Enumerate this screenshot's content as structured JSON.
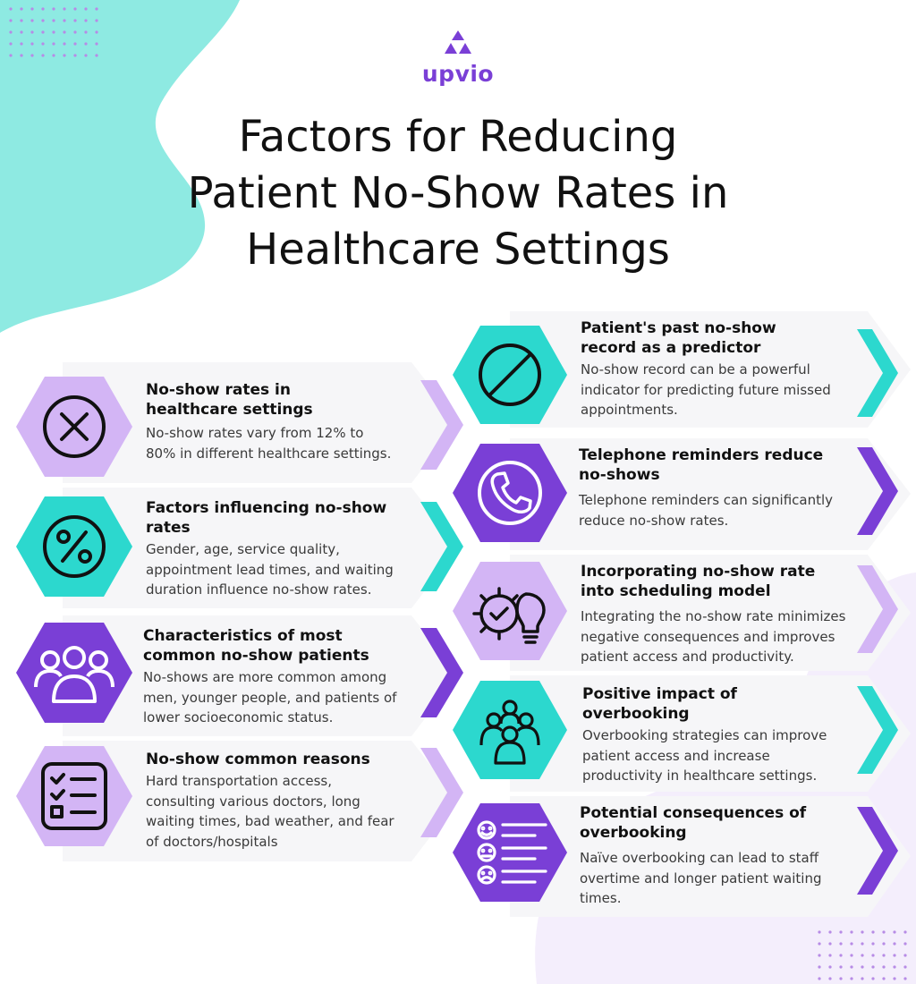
{
  "brand": {
    "name": "upvio",
    "logo_icon": "triangle-logo-icon",
    "color": "#7a3fd6"
  },
  "title_lines": [
    "Factors for Reducing",
    "Patient No-Show Rates in",
    "Healthcare Settings"
  ],
  "colors": {
    "teal": "#2cd8ce",
    "purple": "#7a3fd6",
    "lavender": "#d3b5f5",
    "panel": "#f6f6f8",
    "blob": "#8eeae2"
  },
  "left_cards": [
    {
      "heading": "No-show rates in healthcare settings",
      "heading_lines": [
        "No-show rates in",
        "healthcare settings"
      ],
      "body_lines": [
        "No-show rates vary from 12% to",
        "80% in different healthcare settings."
      ],
      "icon": "x-circle-icon",
      "hex_color": "lavender",
      "chevron_color": "lavender"
    },
    {
      "heading": "Factors influencing no-show rates",
      "heading_lines": [
        "Factors influencing no-show",
        "rates"
      ],
      "body_lines": [
        "Gender, age, service quality,",
        "appointment lead times, and waiting",
        "duration influence no-show rates."
      ],
      "icon": "percent-icon",
      "hex_color": "teal",
      "chevron_color": "teal"
    },
    {
      "heading": "Characteristics of most common no-show patients",
      "heading_lines": [
        "Characteristics of most",
        "common no-show patients"
      ],
      "body_lines": [
        "No-shows are more common among",
        "men, younger people, and patients of",
        "lower socioeconomic status."
      ],
      "icon": "people-group-icon",
      "hex_color": "purple",
      "chevron_color": "purple"
    },
    {
      "heading": "No-show common reasons",
      "heading_lines": [
        "No-show common reasons"
      ],
      "body_lines": [
        "Hard transportation access,",
        "consulting various doctors, long",
        "waiting times, bad weather, and fear",
        "of doctors/hospitals"
      ],
      "icon": "checklist-icon",
      "hex_color": "lavender",
      "chevron_color": "lavender"
    }
  ],
  "right_cards": [
    {
      "heading": "Patient's past no-show record as a predictor",
      "heading_lines": [
        "Patient's past no-show",
        "record as a predictor"
      ],
      "body_lines": [
        "No-show record can be a powerful",
        "indicator for predicting future missed",
        "appointments."
      ],
      "icon": "prohibited-icon",
      "hex_color": "teal",
      "chevron_color": "teal"
    },
    {
      "heading": "Telephone reminders reduce no-shows",
      "heading_lines": [
        "Telephone reminders reduce",
        "no-shows"
      ],
      "body_lines": [
        "Telephone reminders can significantly",
        "reduce no-show rates."
      ],
      "icon": "phone-icon",
      "hex_color": "purple",
      "chevron_color": "purple"
    },
    {
      "heading": "Incorporating no-show rate into scheduling model",
      "heading_lines": [
        "Incorporating no-show rate",
        "into scheduling model"
      ],
      "body_lines": [
        "Integrating the no-show rate minimizes",
        "negative consequences and improves",
        "patient access and productivity."
      ],
      "icon": "gear-bulb-icon",
      "hex_color": "lavender",
      "chevron_color": "lavender"
    },
    {
      "heading": "Positive impact of overbooking",
      "heading_lines": [
        "Positive impact of",
        "overbooking"
      ],
      "body_lines": [
        "Overbooking strategies can improve",
        "patient access and increase",
        "productivity in healthcare settings."
      ],
      "icon": "crowd-icon",
      "hex_color": "teal",
      "chevron_color": "teal"
    },
    {
      "heading": "Potential consequences of overbooking",
      "heading_lines": [
        "Potential consequences of",
        "overbooking"
      ],
      "body_lines": [
        "Naïve overbooking  can lead to staff",
        "overtime and longer patient waiting",
        "times."
      ],
      "icon": "feedback-list-icon",
      "hex_color": "purple",
      "chevron_color": "purple"
    }
  ]
}
